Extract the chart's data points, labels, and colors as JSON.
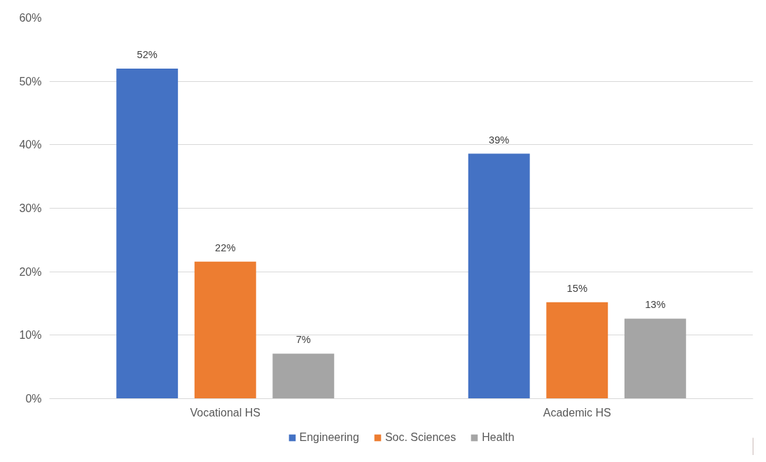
{
  "chart_data": {
    "type": "bar",
    "categories": [
      "Vocational HS",
      "Academic HS"
    ],
    "series": [
      {
        "name": "Engineering",
        "color": "#4472c4",
        "values": [
          52,
          38.6
        ]
      },
      {
        "name": "Soc. Sciences",
        "color": "#ed7d31",
        "values": [
          21.6,
          15.2
        ]
      },
      {
        "name": "Health",
        "color": "#a5a5a5",
        "values": [
          7.1,
          12.6
        ]
      }
    ],
    "value_labels": [
      [
        "52%",
        "39%"
      ],
      [
        "22%",
        "15%"
      ],
      [
        "7%",
        "13%"
      ]
    ],
    "ylim": [
      0,
      60
    ],
    "yticks": [
      {
        "value": 0,
        "label": "0%"
      },
      {
        "value": 10,
        "label": "10%"
      },
      {
        "value": 20,
        "label": "20%"
      },
      {
        "value": 30,
        "label": "30%"
      },
      {
        "value": 40,
        "label": "40%"
      },
      {
        "value": 50,
        "label": "50%"
      },
      {
        "value": 60,
        "label": "60%"
      }
    ],
    "grid": "y",
    "legend": "bottom"
  }
}
